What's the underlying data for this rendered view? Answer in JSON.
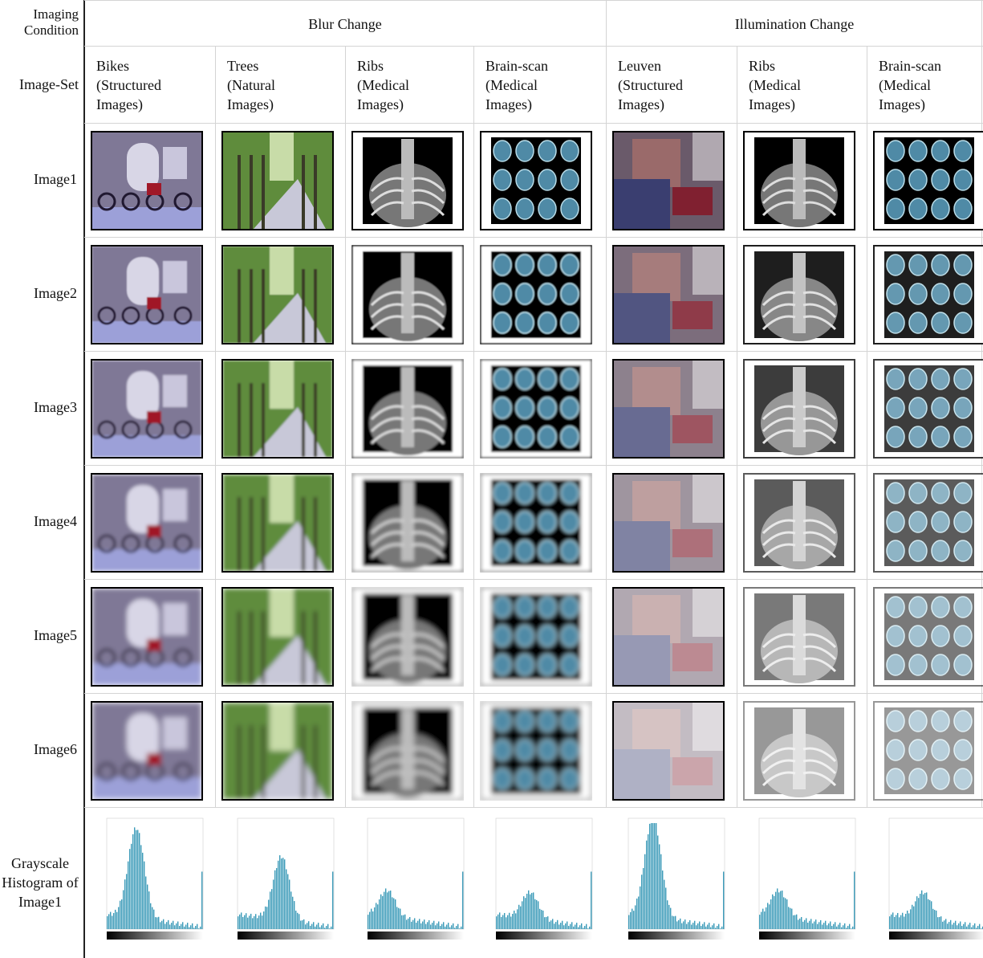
{
  "header": {
    "condition": "Imaging Condition",
    "image_set": "Image-Set",
    "groups": [
      "Blur Change",
      "Illumination Change"
    ],
    "columns": [
      {
        "name": "Bikes",
        "kind": "(Structured Images)"
      },
      {
        "name": "Trees",
        "kind": "(Natural Images)"
      },
      {
        "name": "Ribs",
        "kind": "(Medical Images)"
      },
      {
        "name": "Brain-scan",
        "kind": "(Medical Images)"
      },
      {
        "name": "Leuven",
        "kind": "(Structured Images)"
      },
      {
        "name": "Ribs",
        "kind": "(Medical Images)"
      },
      {
        "name": "Brain-scan",
        "kind": "(Medical Images)"
      }
    ]
  },
  "rows": [
    "Image1",
    "Image2",
    "Image3",
    "Image4",
    "Image5",
    "Image6"
  ],
  "histogram_row": "Grayscale Histogram of Image1"
}
